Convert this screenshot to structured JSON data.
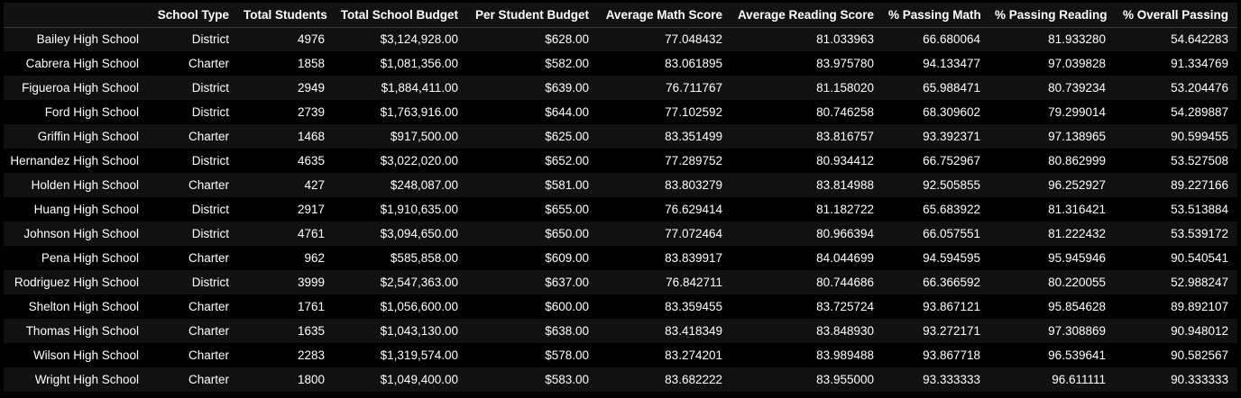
{
  "table": {
    "index_header": "",
    "columns": [
      "School Type",
      "Total Students",
      "Total School Budget",
      "Per Student Budget",
      "Average Math Score",
      "Average Reading Score",
      "% Passing Math",
      "% Passing Reading",
      "% Overall Passing"
    ],
    "rows": [
      {
        "name": "Bailey High School",
        "cells": [
          "District",
          "4976",
          "$3,124,928.00",
          "$628.00",
          "77.048432",
          "81.033963",
          "66.680064",
          "81.933280",
          "54.642283"
        ]
      },
      {
        "name": "Cabrera High School",
        "cells": [
          "Charter",
          "1858",
          "$1,081,356.00",
          "$582.00",
          "83.061895",
          "83.975780",
          "94.133477",
          "97.039828",
          "91.334769"
        ]
      },
      {
        "name": "Figueroa High School",
        "cells": [
          "District",
          "2949",
          "$1,884,411.00",
          "$639.00",
          "76.711767",
          "81.158020",
          "65.988471",
          "80.739234",
          "53.204476"
        ]
      },
      {
        "name": "Ford High School",
        "cells": [
          "District",
          "2739",
          "$1,763,916.00",
          "$644.00",
          "77.102592",
          "80.746258",
          "68.309602",
          "79.299014",
          "54.289887"
        ]
      },
      {
        "name": "Griffin High School",
        "cells": [
          "Charter",
          "1468",
          "$917,500.00",
          "$625.00",
          "83.351499",
          "83.816757",
          "93.392371",
          "97.138965",
          "90.599455"
        ]
      },
      {
        "name": "Hernandez High School",
        "cells": [
          "District",
          "4635",
          "$3,022,020.00",
          "$652.00",
          "77.289752",
          "80.934412",
          "66.752967",
          "80.862999",
          "53.527508"
        ]
      },
      {
        "name": "Holden High School",
        "cells": [
          "Charter",
          "427",
          "$248,087.00",
          "$581.00",
          "83.803279",
          "83.814988",
          "92.505855",
          "96.252927",
          "89.227166"
        ]
      },
      {
        "name": "Huang High School",
        "cells": [
          "District",
          "2917",
          "$1,910,635.00",
          "$655.00",
          "76.629414",
          "81.182722",
          "65.683922",
          "81.316421",
          "53.513884"
        ]
      },
      {
        "name": "Johnson High School",
        "cells": [
          "District",
          "4761",
          "$3,094,650.00",
          "$650.00",
          "77.072464",
          "80.966394",
          "66.057551",
          "81.222432",
          "53.539172"
        ]
      },
      {
        "name": "Pena High School",
        "cells": [
          "Charter",
          "962",
          "$585,858.00",
          "$609.00",
          "83.839917",
          "84.044699",
          "94.594595",
          "95.945946",
          "90.540541"
        ]
      },
      {
        "name": "Rodriguez High School",
        "cells": [
          "District",
          "3999",
          "$2,547,363.00",
          "$637.00",
          "76.842711",
          "80.744686",
          "66.366592",
          "80.220055",
          "52.988247"
        ]
      },
      {
        "name": "Shelton High School",
        "cells": [
          "Charter",
          "1761",
          "$1,056,600.00",
          "$600.00",
          "83.359455",
          "83.725724",
          "93.867121",
          "95.854628",
          "89.892107"
        ]
      },
      {
        "name": "Thomas High School",
        "cells": [
          "Charter",
          "1635",
          "$1,043,130.00",
          "$638.00",
          "83.418349",
          "83.848930",
          "93.272171",
          "97.308869",
          "90.948012"
        ]
      },
      {
        "name": "Wilson High School",
        "cells": [
          "Charter",
          "2283",
          "$1,319,574.00",
          "$578.00",
          "83.274201",
          "83.989488",
          "93.867718",
          "96.539641",
          "90.582567"
        ]
      },
      {
        "name": "Wright High School",
        "cells": [
          "Charter",
          "1800",
          "$1,049,400.00",
          "$583.00",
          "83.682222",
          "83.955000",
          "93.333333",
          "96.611111",
          "90.333333"
        ]
      }
    ]
  }
}
